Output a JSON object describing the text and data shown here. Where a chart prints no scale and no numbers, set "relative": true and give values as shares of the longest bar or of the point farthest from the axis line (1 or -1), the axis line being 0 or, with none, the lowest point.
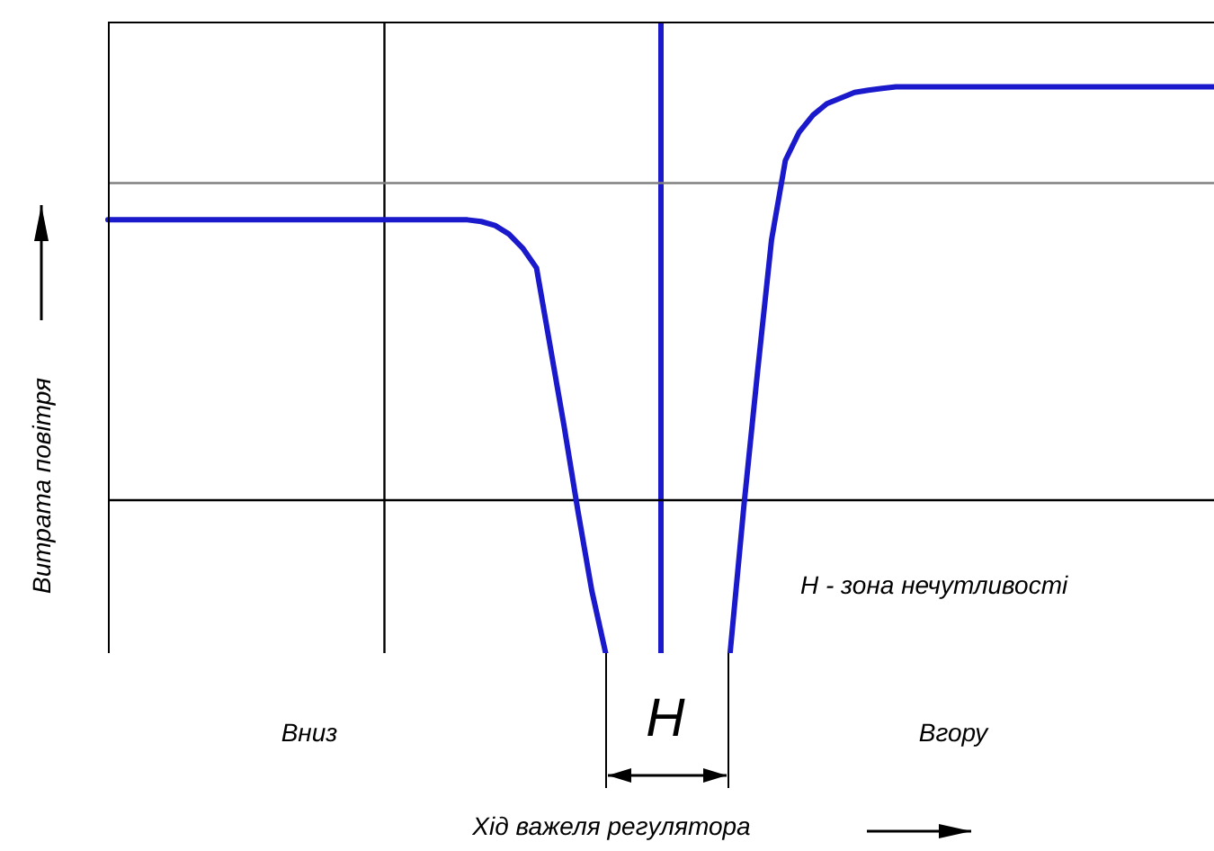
{
  "chart_data": {
    "type": "line",
    "relative": true,
    "ylabel": "Витрата повітря",
    "annotations": [
      "H - зона нечутливості",
      "Вниз",
      "H",
      "Вгору",
      "Хід важеля регулятора"
    ],
    "categories": [
      null,
      null,
      null,
      null,
      null,
      null,
      null,
      null,
      null,
      null,
      null,
      null,
      null,
      null,
      null,
      null,
      null,
      null,
      null,
      null,
      null,
      null,
      null,
      null,
      null,
      null,
      null,
      null,
      null,
      null,
      null,
      null,
      null,
      null,
      null,
      null,
      null,
      null,
      null,
      null,
      null,
      null,
      null,
      null,
      null,
      null,
      null,
      null,
      null,
      null,
      null,
      null,
      null,
      null,
      null,
      null,
      null,
      null,
      null,
      null,
      null,
      null,
      null,
      null,
      null,
      null,
      null,
      null,
      null,
      null,
      null,
      null,
      null,
      null,
      null,
      null,
      null,
      null,
      null,
      null,
      null
    ],
    "marker": "none",
    "line_style": "solid",
    "ref_lines": [
      {
        "axis": "y",
        "value": 0.83,
        "color": "#808080"
      },
      {
        "axis": "y",
        "value": 0.27,
        "color": "#000000"
      }
    ],
    "series": [
      {
        "color": "#1a1acc",
        "values": [
          0.765,
          0.765,
          0.765,
          0.765,
          0.765,
          0.765,
          0.765,
          0.765,
          0.765,
          0.765,
          0.765,
          0.765,
          0.765,
          0.765,
          0.765,
          0.765,
          0.765,
          0.765,
          0.765,
          0.765,
          0.765,
          0.765,
          0.765,
          0.765,
          0.765,
          0.765,
          0.765,
          0.762,
          0.755,
          0.74,
          0.715,
          0.68,
          0.54,
          0.4,
          0.25,
          0.11,
          0,
          null,
          null,
          null,
          null,
          null,
          null,
          null,
          null,
          null,
          null,
          null,
          null,
          null,
          null,
          null,
          null,
          null,
          null,
          null,
          null,
          null,
          null,
          null,
          null,
          null,
          null,
          null,
          null,
          null,
          null,
          null,
          null,
          null,
          null,
          null,
          null,
          null,
          null,
          null,
          null,
          null,
          null,
          null,
          null
        ]
      },
      {
        "color": "#1a1acc",
        "values": [
          null,
          null,
          null,
          null,
          null,
          null,
          null,
          null,
          null,
          null,
          null,
          null,
          null,
          null,
          null,
          null,
          null,
          null,
          null,
          null,
          null,
          null,
          null,
          null,
          null,
          null,
          null,
          null,
          null,
          null,
          null,
          null,
          null,
          null,
          null,
          null,
          null,
          null,
          null,
          null,
          null,
          null,
          null,
          null,
          null,
          0,
          0.26,
          0.5,
          0.73,
          0.87,
          0.92,
          0.95,
          0.97,
          0.98,
          0.99,
          0.994,
          0.997,
          1,
          1,
          1,
          1,
          1,
          1,
          1,
          1,
          1,
          1,
          1,
          1,
          1,
          1,
          1,
          1,
          1,
          1,
          1,
          1,
          1,
          1,
          1,
          1
        ]
      }
    ]
  }
}
